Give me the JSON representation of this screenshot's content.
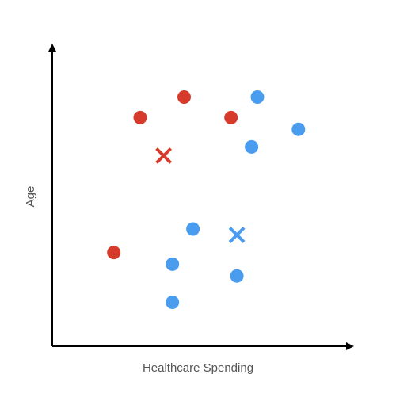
{
  "chart_data": {
    "type": "scatter",
    "xlabel": "Healthcare Spending",
    "ylabel": "Age",
    "xlim": [
      0,
      100
    ],
    "ylim": [
      0,
      100
    ],
    "series": [
      {
        "color": "#d63a2b",
        "marker": "o",
        "x": [
          45,
          30,
          61,
          21
        ],
        "values": [
          85,
          78,
          78,
          32
        ]
      },
      {
        "color": "#d63a2b",
        "marker": "x",
        "x": [
          38
        ],
        "values": [
          65
        ]
      },
      {
        "color": "#4a9cef",
        "marker": "o",
        "x": [
          70,
          84,
          68,
          48,
          41,
          63,
          41
        ],
        "values": [
          85,
          74,
          68,
          40,
          28,
          24,
          15
        ]
      },
      {
        "color": "#4a9cef",
        "marker": "x",
        "x": [
          63
        ],
        "values": [
          38
        ]
      }
    ]
  }
}
